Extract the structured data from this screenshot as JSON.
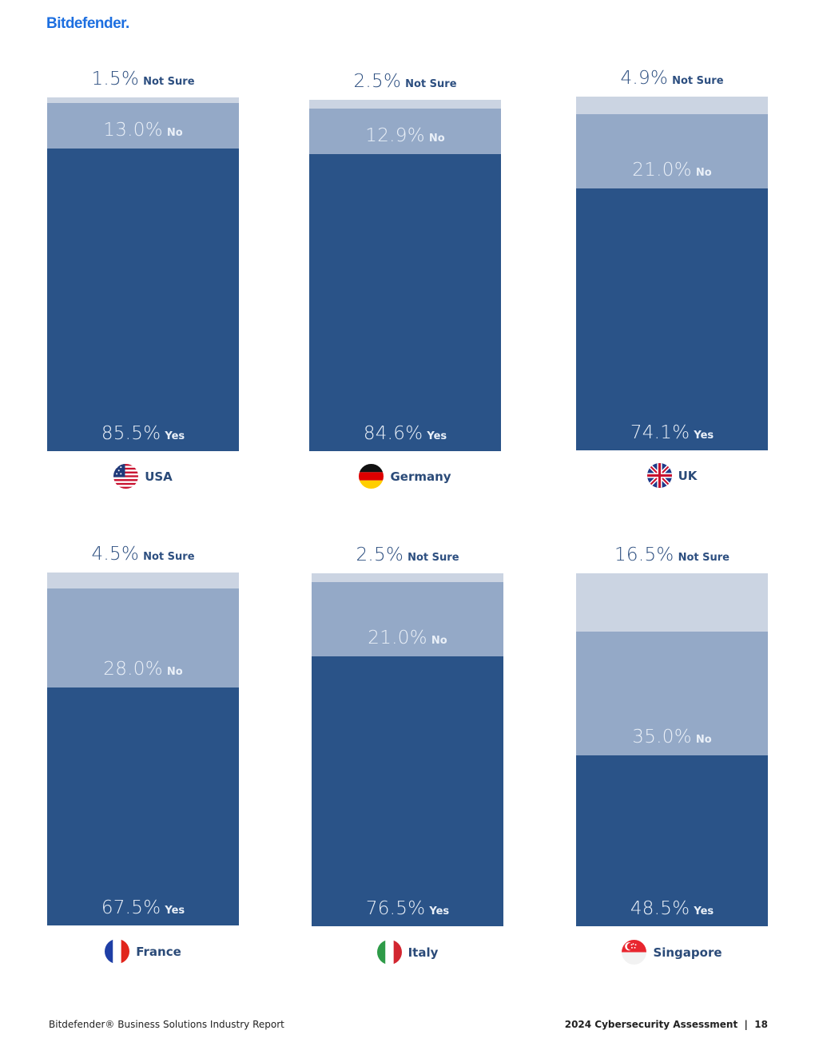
{
  "header": {
    "logo": "Bitdefender."
  },
  "chart_data": [
    {
      "type": "bar",
      "stacked": true,
      "country": "USA",
      "flag_icon": "usa-flag-icon",
      "series": [
        {
          "name": "Yes",
          "value": 85.5
        },
        {
          "name": "No",
          "value": 13.0
        },
        {
          "name": "Not Sure",
          "value": 1.5
        }
      ]
    },
    {
      "type": "bar",
      "stacked": true,
      "country": "Germany",
      "flag_icon": "germany-flag-icon",
      "series": [
        {
          "name": "Yes",
          "value": 84.6
        },
        {
          "name": "No",
          "value": 12.9
        },
        {
          "name": "Not Sure",
          "value": 2.5
        }
      ]
    },
    {
      "type": "bar",
      "stacked": true,
      "country": "UK",
      "flag_icon": "uk-flag-icon",
      "series": [
        {
          "name": "Yes",
          "value": 74.1
        },
        {
          "name": "No",
          "value": 21.0
        },
        {
          "name": "Not Sure",
          "value": 4.9
        }
      ]
    },
    {
      "type": "bar",
      "stacked": true,
      "country": "France",
      "flag_icon": "france-flag-icon",
      "series": [
        {
          "name": "Yes",
          "value": 67.5
        },
        {
          "name": "No",
          "value": 28.0
        },
        {
          "name": "Not Sure",
          "value": 4.5
        }
      ]
    },
    {
      "type": "bar",
      "stacked": true,
      "country": "Italy",
      "flag_icon": "italy-flag-icon",
      "series": [
        {
          "name": "Yes",
          "value": 76.5
        },
        {
          "name": "No",
          "value": 21.0
        },
        {
          "name": "Not Sure",
          "value": 2.5
        }
      ]
    },
    {
      "type": "bar",
      "stacked": true,
      "country": "Singapore",
      "flag_icon": "singapore-flag-icon",
      "series": [
        {
          "name": "Yes",
          "value": 48.5
        },
        {
          "name": "No",
          "value": 35.0
        },
        {
          "name": "Not Sure",
          "value": 16.5
        }
      ]
    }
  ],
  "colors": {
    "yes": "#2a5388",
    "no": "#94a9c7",
    "not_sure": "#cbd4e2"
  },
  "footer": {
    "left": "Bitdefender® Business Solutions Industry Report",
    "right": "2024 Cybersecurity Assessment  |  18"
  }
}
